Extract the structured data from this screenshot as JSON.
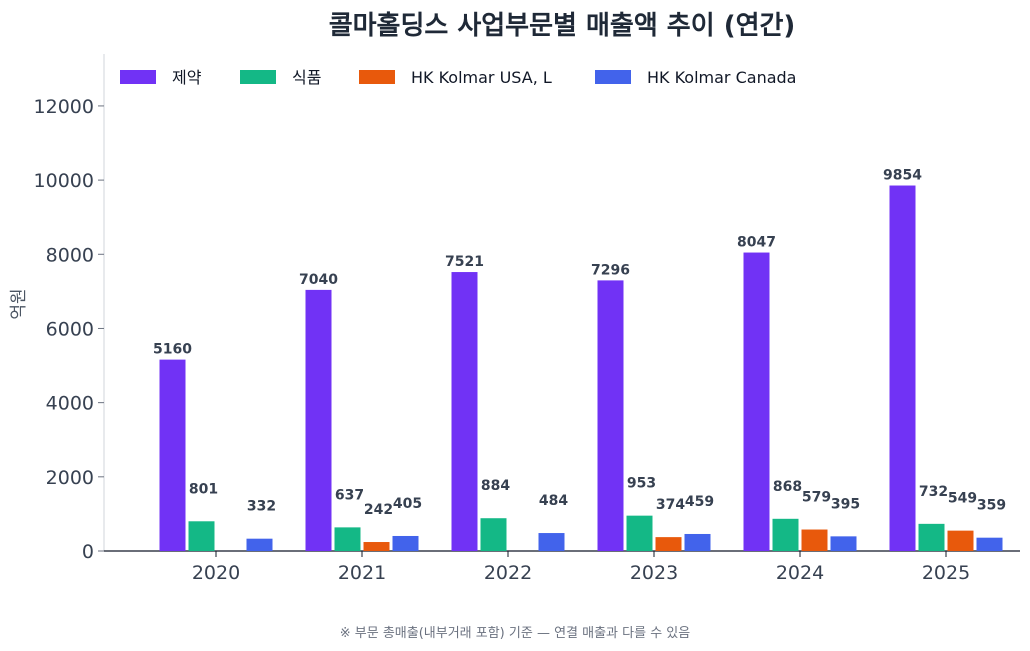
{
  "chart_data": {
    "type": "bar",
    "title": "콜마홀딩스 사업부문별 매출액 추이 (연간)",
    "ylabel": "억원",
    "xlabel": "",
    "ylim": [
      0,
      13400
    ],
    "yticks": [
      0,
      2000,
      4000,
      6000,
      8000,
      10000,
      12000
    ],
    "grid": false,
    "legend_position": "top-left",
    "categories": [
      "2020",
      "2021",
      "2022",
      "2023",
      "2024",
      "2025"
    ],
    "series": [
      {
        "name": "제약",
        "color": "#7132f5",
        "values": [
          5160,
          7040,
          7521,
          7296,
          8047,
          9854
        ]
      },
      {
        "name": "식품",
        "color": "#14b886",
        "values": [
          801,
          637,
          884,
          953,
          868,
          732
        ]
      },
      {
        "name": "HK Kolmar USA, L",
        "color": "#e8590c",
        "values": [
          null,
          242,
          null,
          374,
          579,
          549
        ]
      },
      {
        "name": "HK Kolmar Canada",
        "color": "#4263eb",
        "values": [
          332,
          405,
          484,
          459,
          395,
          359
        ]
      }
    ],
    "footnote": "※ 부문 총매출(내부거래 포함) 기준 — 연결 매출과 다를 수 있음"
  }
}
